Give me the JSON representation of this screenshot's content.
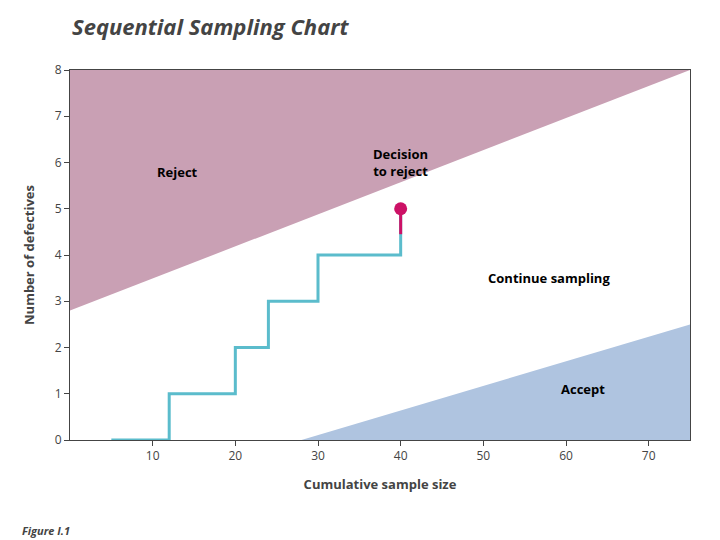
{
  "chart_data": {
    "type": "line",
    "title": "Sequential Sampling Chart",
    "xlabel": "Cumulative sample size",
    "ylabel": "Number of defectives",
    "caption": "Figure I.1",
    "xlim": [
      0,
      75
    ],
    "ylim": [
      0,
      8
    ],
    "xticks": [
      10,
      20,
      30,
      40,
      50,
      60,
      70
    ],
    "yticks": [
      0,
      1,
      2,
      3,
      4,
      5,
      6,
      7,
      8
    ],
    "grid": false,
    "series": [
      {
        "type": "area",
        "fill": "above",
        "color": "#c9a0b4",
        "x": [
          0,
          75
        ],
        "values": [
          2.8,
          8.0
        ]
      },
      {
        "type": "area",
        "fill": "below",
        "color": "#afc4e0",
        "x": [
          28,
          75
        ],
        "values": [
          0.0,
          2.5
        ]
      },
      {
        "type": "line",
        "color": "#5bbccc",
        "x": [
          5,
          12,
          12,
          16,
          16,
          20,
          20,
          24,
          24,
          27,
          27,
          30,
          30,
          33,
          33,
          36,
          36,
          40,
          40
        ],
        "values": [
          0,
          0,
          1,
          1,
          1,
          1,
          2,
          2,
          3,
          3,
          3,
          3,
          4,
          4,
          4,
          4,
          4,
          4,
          5
        ]
      },
      {
        "type": "line",
        "color": "#cc1166",
        "x": [
          40,
          40
        ],
        "values": [
          4.45,
          5
        ]
      },
      {
        "type": "scatter",
        "marker": "circle",
        "color": "#cc1166",
        "x": [
          40
        ],
        "values": [
          5
        ]
      }
    ],
    "annotations": [
      {
        "text": "Reject",
        "x": 13,
        "y": 5.8
      },
      {
        "text": "Decision\nto reject",
        "x": 40,
        "y": 6.0
      },
      {
        "text": "Continue sampling",
        "x": 58,
        "y": 3.5
      },
      {
        "text": "Accept",
        "x": 62,
        "y": 1.1
      }
    ]
  }
}
